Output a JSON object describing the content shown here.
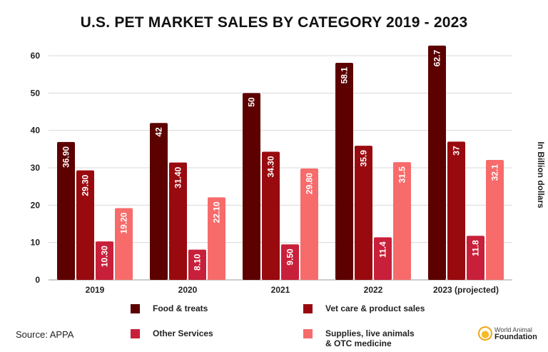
{
  "chart_data": {
    "type": "bar",
    "title": "U.S. PET MARKET SALES BY CATEGORY 2019 - 2023",
    "categories": [
      "2019",
      "2020",
      "2021",
      "2022",
      "2023 (projected)"
    ],
    "series": [
      {
        "name": "Food & treats",
        "color": "#5c0000",
        "values": [
          36.9,
          42,
          50,
          58.1,
          62.7
        ],
        "labels": [
          "36.90",
          "42",
          "50",
          "58.1",
          "62.7"
        ]
      },
      {
        "name": "Vet care & product sales",
        "color": "#990a0f",
        "values": [
          29.3,
          31.4,
          34.3,
          35.9,
          37
        ],
        "labels": [
          "29.30",
          "31.40",
          "34.30",
          "35.9",
          "37"
        ]
      },
      {
        "name": "Other Services",
        "color": "#c8203a",
        "values": [
          10.3,
          8.1,
          9.5,
          11.4,
          11.8
        ],
        "labels": [
          "10.30",
          "8.10",
          "9.50",
          "11.4",
          "11.8"
        ]
      },
      {
        "name": "Supplies, live animals & OTC medicine",
        "color": "#f76b6b",
        "values": [
          19.2,
          22.1,
          29.8,
          31.5,
          32.1
        ],
        "labels": [
          "19.20",
          "22.10",
          "29.80",
          "31.5",
          "32.1"
        ]
      }
    ],
    "xlabel": "",
    "ylabel": "In Billion dollars",
    "ylim": [
      0,
      60
    ],
    "yticks": [
      "0",
      "10",
      "20",
      "30",
      "40",
      "50",
      "60"
    ],
    "grid": true,
    "legend_position": "bottom"
  },
  "legend_lines": {
    "food": [
      "Food & treats"
    ],
    "vet": [
      "Vet care & product sales"
    ],
    "other": [
      "Other Services"
    ],
    "supplies": [
      "Supplies, live animals",
      "& OTC medicine"
    ]
  },
  "source": "Source: APPA",
  "logo": {
    "line1": "World Animal",
    "line2": "Foundation"
  }
}
